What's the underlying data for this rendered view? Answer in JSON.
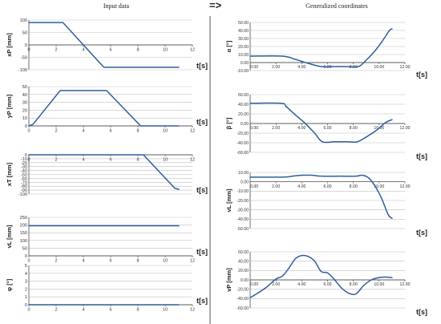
{
  "header": {
    "left_title": "Input data",
    "arrow": "=>",
    "right_title": "Generalized coordinates"
  },
  "colors": {
    "series": "#2e5e9e",
    "grid": "#bfbfbf",
    "axis": "#333333",
    "text": "#333333"
  },
  "chart_data": [
    {
      "type": "line",
      "column": "left",
      "ylabel": "xP [mm]",
      "xlabel": "t[s]",
      "ylim": [
        -100,
        100
      ],
      "yticks": [
        -100,
        -50,
        0,
        50,
        100
      ],
      "ytick_labels": [
        "-100",
        "-50",
        "0",
        "50",
        "100"
      ],
      "xlim": [
        0,
        12
      ],
      "xticks": [
        0,
        2,
        4,
        6,
        8,
        10,
        12
      ],
      "xtick_labels": [
        "0",
        "2",
        "4",
        "6",
        "8",
        "10",
        "12"
      ],
      "x": [
        0,
        2.5,
        5.5,
        11
      ],
      "y": [
        90,
        90,
        -90,
        -90
      ]
    },
    {
      "type": "line",
      "column": "left",
      "ylabel": "yP [mm]",
      "xlabel": "t[s]",
      "ylim": [
        0,
        50
      ],
      "yticks": [
        0,
        10,
        20,
        30,
        40,
        50
      ],
      "ytick_labels": [
        "0",
        "10",
        "20",
        "30",
        "40",
        "50"
      ],
      "xlim": [
        0,
        12
      ],
      "xticks": [
        0,
        2,
        4,
        6,
        8,
        10,
        12
      ],
      "xtick_labels": [
        "0",
        "2",
        "4",
        "6",
        "8",
        "10",
        "12"
      ],
      "x": [
        0,
        0.3,
        2.3,
        5.7,
        8.2,
        11
      ],
      "y": [
        0,
        2,
        45,
        45,
        0,
        0
      ]
    },
    {
      "type": "line",
      "column": "left",
      "ylabel": "xT [mm]",
      "xlabel": "t[s]",
      "ylim": [
        -100,
        0
      ],
      "yticks": [
        -100,
        -90,
        -80,
        -70,
        -60,
        -50,
        -40,
        -30,
        -20,
        -10,
        0
      ],
      "ytick_labels": [
        "-100",
        "-90",
        "-80",
        "-70",
        "-60",
        "-50",
        "-40",
        "-30",
        "-20",
        "-10",
        "0"
      ],
      "xlim": [
        0,
        12
      ],
      "xticks": [
        0,
        2,
        4,
        6,
        8,
        10,
        12
      ],
      "xtick_labels": [
        "0",
        "2",
        "4",
        "6",
        "8",
        "10",
        "12"
      ],
      "x": [
        0,
        8.4,
        10.7,
        11
      ],
      "y": [
        0,
        0,
        -85,
        -88
      ]
    },
    {
      "type": "line",
      "column": "left",
      "ylabel": "vL [mm]",
      "xlabel": "t[s]",
      "ylim": [
        0,
        250
      ],
      "yticks": [
        0,
        50,
        100,
        150,
        200,
        250
      ],
      "ytick_labels": [
        "0",
        "50",
        "100",
        "150",
        "200",
        "250"
      ],
      "xlim": [
        0,
        12
      ],
      "xticks": [
        0,
        2,
        4,
        6,
        8,
        10,
        12
      ],
      "xtick_labels": [
        "0",
        "2",
        "4",
        "6",
        "8",
        "10",
        "12"
      ],
      "x": [
        0,
        11
      ],
      "y": [
        195,
        195
      ]
    },
    {
      "type": "line",
      "column": "left",
      "ylabel": "φ [°]",
      "xlabel": "t[s]",
      "ylim": [
        0,
        5
      ],
      "yticks": [
        0,
        1,
        2,
        3,
        4,
        5
      ],
      "ytick_labels": [
        "0",
        "1",
        "2",
        "3",
        "4",
        "5"
      ],
      "xlim": [
        0,
        12
      ],
      "xticks": [
        0,
        2,
        4,
        6,
        8,
        10,
        12
      ],
      "xtick_labels": [
        "0",
        "2",
        "4",
        "6",
        "8",
        "10",
        "12"
      ],
      "x": [
        0,
        11
      ],
      "y": [
        0,
        0
      ]
    },
    {
      "type": "line",
      "column": "right",
      "ylabel": "α [°]",
      "xlabel": "t[s]",
      "ylim": [
        -10,
        50
      ],
      "yticks": [
        -10,
        0,
        10,
        20,
        30,
        40,
        50
      ],
      "ytick_labels": [
        "-10.00",
        "0.00",
        "10.00",
        "20.00",
        "30.00",
        "40.00",
        "50.00"
      ],
      "xlim": [
        0,
        12
      ],
      "xticks": [
        0,
        2,
        4,
        6,
        8,
        10,
        12
      ],
      "xtick_labels": [
        "0.00",
        "2.00",
        "4.00",
        "6.00",
        "8.00",
        "10.00",
        "12.00"
      ],
      "x": [
        0,
        2.5,
        3.5,
        4.5,
        5.5,
        6.5,
        7.5,
        8.4,
        9,
        9.7,
        10.3,
        10.8,
        11
      ],
      "y": [
        8,
        8,
        4,
        -1,
        -5,
        -5,
        -5,
        -5,
        3,
        15,
        28,
        40,
        42
      ]
    },
    {
      "type": "line",
      "column": "right",
      "ylabel": "β [°]",
      "xlabel": "t[s]",
      "ylim": [
        -60,
        60
      ],
      "yticks": [
        -60,
        -40,
        -20,
        0,
        20,
        40,
        60
      ],
      "ytick_labels": [
        "-60.00",
        "-40.00",
        "-20.00",
        "0.00",
        "20.00",
        "40.00",
        "60.00"
      ],
      "xlim": [
        0,
        12
      ],
      "xticks": [
        0,
        2,
        4,
        6,
        8,
        10,
        12
      ],
      "xtick_labels": [
        "0.00",
        "2.00",
        "4.00",
        "6.00",
        "8.00",
        "10.00",
        "12.00"
      ],
      "x": [
        0,
        2.4,
        2.8,
        3.5,
        4.2,
        5,
        5.6,
        6.5,
        7.5,
        8.3,
        9,
        9.8,
        10.5,
        11
      ],
      "y": [
        42,
        42,
        35,
        18,
        2,
        -20,
        -38,
        -38,
        -38,
        -38,
        -28,
        -14,
        2,
        8
      ]
    },
    {
      "type": "line",
      "column": "right",
      "ylabel": "vL [mm]",
      "xlabel": "t[s]",
      "ylim": [
        -50,
        10
      ],
      "yticks": [
        -50,
        -40,
        -30,
        -20,
        -10,
        0,
        10
      ],
      "ytick_labels": [
        "-50.00",
        "-40.00",
        "-30.00",
        "-20.00",
        "-10.00",
        "0.00",
        "10.00"
      ],
      "xlim": [
        0,
        12
      ],
      "xticks": [
        0,
        2,
        4,
        6,
        8,
        10,
        12
      ],
      "xtick_labels": [
        "0.00",
        "2.00",
        "4.00",
        "6.00",
        "8.00",
        "10.00",
        "12.00"
      ],
      "x": [
        0,
        2.5,
        3.3,
        4,
        4.8,
        5.5,
        7,
        8.2,
        8.7,
        9.2,
        9.7,
        10.2,
        10.7,
        11
      ],
      "y": [
        5,
        5,
        6,
        7,
        7,
        6,
        6,
        6,
        7,
        4,
        -5,
        -18,
        -35,
        -39
      ]
    },
    {
      "type": "line",
      "column": "right",
      "ylabel": "vP [mm]",
      "xlabel": "t[s]",
      "ylim": [
        -60,
        60
      ],
      "yticks": [
        -60,
        -40,
        -20,
        0,
        20,
        40,
        60
      ],
      "ytick_labels": [
        "-60.00",
        "-40.00",
        "-20.00",
        "0.00",
        "20.00",
        "40.00",
        "60.00"
      ],
      "xlim": [
        0,
        12
      ],
      "xticks": [
        0,
        2,
        4,
        6,
        8,
        10,
        12
      ],
      "xtick_labels": [
        "0.00",
        "2.00",
        "4.00",
        "6.00",
        "8.00",
        "10.00",
        "12.00"
      ],
      "x": [
        0,
        0.6,
        1.3,
        2,
        2.5,
        3,
        3.5,
        4,
        4.5,
        5,
        5.5,
        6,
        6.5,
        7,
        7.6,
        8.2,
        8.8,
        9.4,
        10,
        10.5,
        11
      ],
      "y": [
        -38,
        -28,
        -15,
        2,
        8,
        25,
        45,
        52,
        50,
        40,
        18,
        15,
        2,
        -15,
        -28,
        -30,
        -12,
        0,
        5,
        6,
        5
      ]
    }
  ]
}
